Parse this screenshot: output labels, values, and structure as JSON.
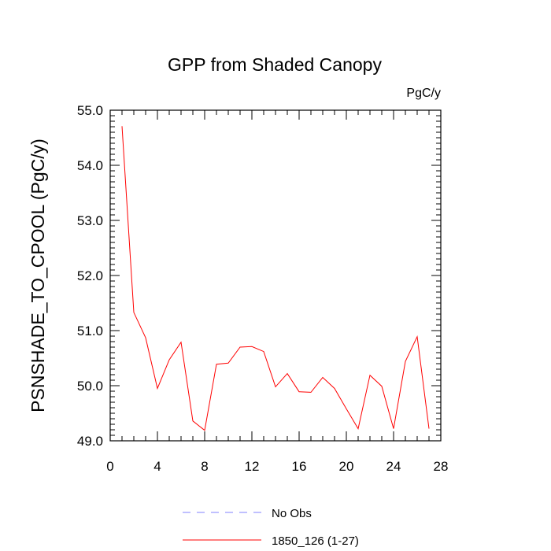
{
  "chart_data": {
    "type": "line",
    "title": "GPP from Shaded Canopy",
    "units_label": "PgC/y",
    "ylabel": "PSNSHADE_TO_CPOOL  (PgC/y)",
    "xlabel": "",
    "xlim": [
      0,
      28
    ],
    "ylim": [
      49.0,
      55.0
    ],
    "x_ticks": [
      0,
      4,
      8,
      12,
      16,
      20,
      24,
      28
    ],
    "y_ticks": [
      49.0,
      50.0,
      51.0,
      52.0,
      53.0,
      54.0,
      55.0
    ],
    "y_tick_labels": [
      "49.0",
      "50.0",
      "51.0",
      "52.0",
      "53.0",
      "54.0",
      "55.0"
    ],
    "grid": false,
    "legend_position": "bottom",
    "series": [
      {
        "name": "No Obs",
        "color": "#8080ff",
        "dash": true,
        "x": [],
        "values": []
      },
      {
        "name": "1850_126 (1-27)",
        "color": "#ff0000",
        "dash": false,
        "x": [
          1,
          2,
          3,
          4,
          5,
          6,
          7,
          8,
          9,
          10,
          11,
          12,
          13,
          14,
          15,
          16,
          17,
          18,
          19,
          20,
          21,
          22,
          23,
          24,
          25,
          26,
          27
        ],
        "values": [
          54.71,
          51.33,
          50.87,
          49.95,
          50.47,
          50.79,
          49.36,
          49.19,
          50.39,
          50.41,
          50.7,
          50.71,
          50.62,
          49.98,
          50.22,
          49.89,
          49.88,
          50.15,
          49.95,
          49.58,
          49.22,
          50.19,
          49.99,
          49.22,
          50.44,
          50.89,
          49.22
        ]
      }
    ]
  }
}
